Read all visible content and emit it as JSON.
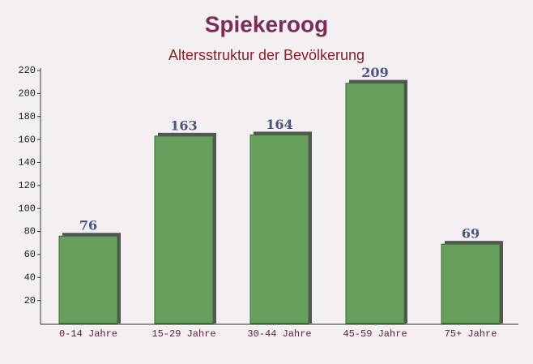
{
  "chart_data": {
    "type": "bar",
    "title": "Spiekeroog",
    "subtitle": "Altersstruktur der Bevölkerung",
    "categories": [
      "0-14 Jahre",
      "15-29 Jahre",
      "30-44 Jahre",
      "45-59 Jahre",
      "75+ Jahre"
    ],
    "values": [
      76,
      163,
      164,
      209,
      69
    ],
    "color": "#67a05c",
    "ylim": [
      0,
      220
    ],
    "yticks": [
      20,
      40,
      60,
      80,
      100,
      120,
      140,
      160,
      180,
      200,
      220
    ],
    "grid": false
  }
}
